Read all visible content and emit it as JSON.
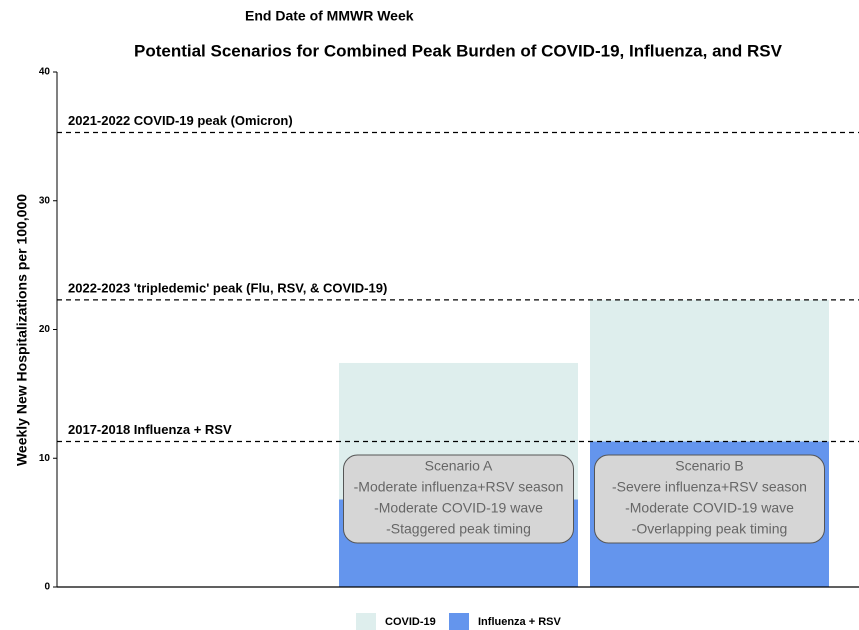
{
  "chart_data": {
    "type": "stacked_bar",
    "title": "Potential Scenarios for Combined Peak Burden of COVID-19, Influenza, and RSV",
    "xlabel": "End Date of MMWR Week",
    "ylabel": "Weekly New Hospitalizations per 100,000",
    "categories": [
      null,
      null,
      null
    ],
    "series": [
      {
        "name": "COVID-19",
        "color": "#deeeed",
        "values": [
          null,
          10.6,
          11.0
        ]
      },
      {
        "name": "Influenza + RSV",
        "color": "#6495ed",
        "values": [
          null,
          6.8,
          11.3
        ]
      }
    ],
    "ylim": [
      0,
      40
    ],
    "yticks": [
      0,
      10,
      20,
      30,
      40
    ],
    "reference_lines": [
      {
        "label": "2021-2022 COVID-19 peak (Omicron)",
        "value": 35.3
      },
      {
        "label": "2022-2023 'tripledemic' peak (Flu, RSV, & COVID-19)",
        "value": 22.3
      },
      {
        "label": "2017-2018 Influenza + RSV",
        "value": 11.3
      }
    ],
    "annotations": [
      {
        "category": 1,
        "lines": [
          "Scenario A",
          "-Moderate influenza+RSV season",
          "-Moderate COVID-19 wave",
          "-Staggered peak timing"
        ]
      },
      {
        "category": 2,
        "lines": [
          "Scenario B",
          "-Severe influenza+RSV season",
          "-Moderate COVID-19 wave",
          "-Overlapping peak timing"
        ]
      }
    ],
    "legend": "bottom"
  }
}
